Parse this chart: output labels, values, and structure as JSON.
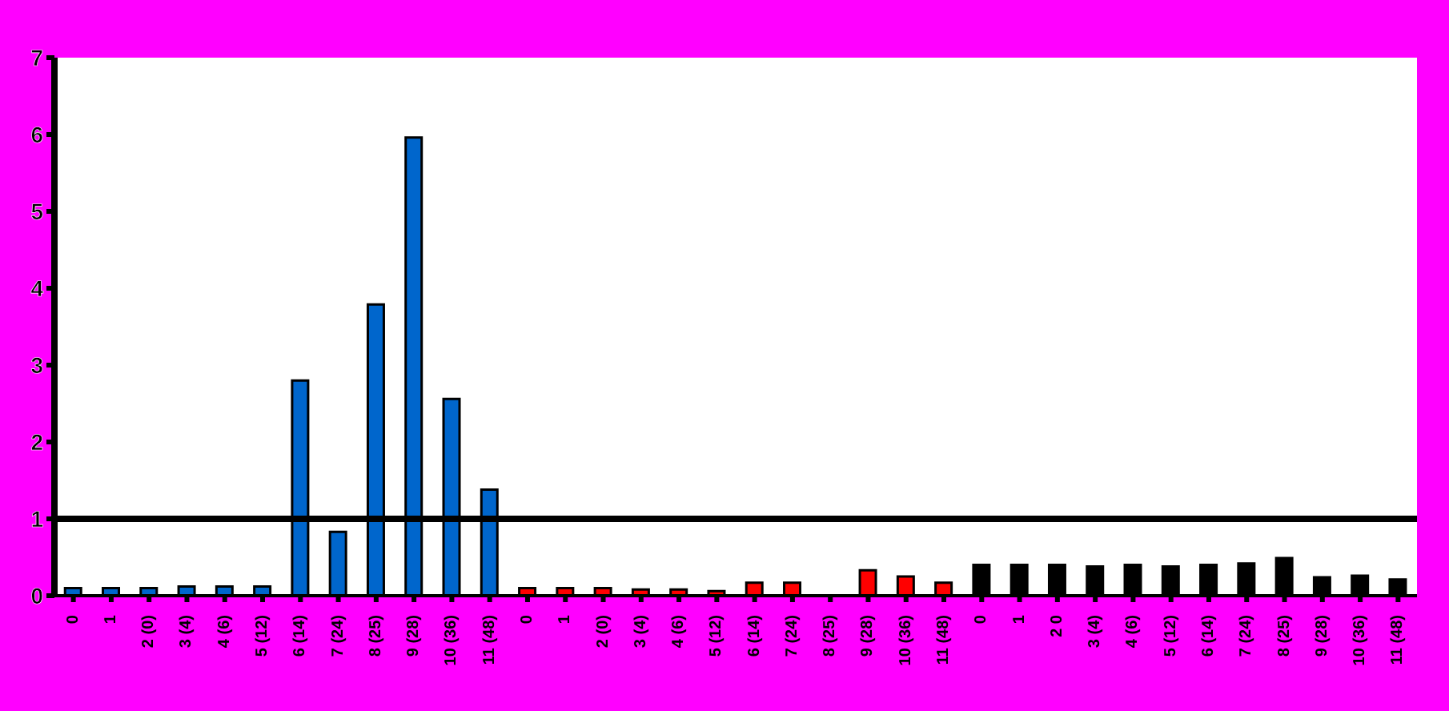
{
  "chart_data": {
    "type": "bar",
    "categories": [
      "0",
      "1",
      "2 (0)",
      "3 (4)",
      "4 (6)",
      "5 (12)",
      "6 (14)",
      "7 (24)",
      "8 (25)",
      "9 (28)",
      "10 (36)",
      "11 (48)",
      "0",
      "1",
      "2 (0)",
      "3 (4)",
      "4 (6)",
      "5 (12)",
      "6 (14)",
      "7 (24)",
      "8 (25)",
      "9 (28)",
      "10 (36)",
      "11 (48)",
      "0",
      "1",
      "2 0",
      "3 (4)",
      "4 (6)",
      "5 (12)",
      "6 (14)",
      "7 (24)",
      "8 (25)",
      "9 (28)",
      "10 (36)",
      "11 (48)"
    ],
    "values": [
      0.1,
      0.1,
      0.1,
      0.12,
      0.12,
      0.12,
      2.8,
      0.83,
      3.79,
      5.96,
      2.56,
      1.38,
      0.1,
      0.1,
      0.1,
      0.08,
      0.08,
      0.06,
      0.17,
      0.17,
      0,
      0.33,
      0.25,
      0.17,
      0.4,
      0.4,
      0.4,
      0.38,
      0.4,
      0.38,
      0.4,
      0.42,
      0.49,
      0.24,
      0.26,
      0.21
    ],
    "colors": [
      "#0066cc",
      "#0066cc",
      "#0066cc",
      "#0066cc",
      "#0066cc",
      "#0066cc",
      "#0066cc",
      "#0066cc",
      "#0066cc",
      "#0066cc",
      "#0066cc",
      "#0066cc",
      "#ff0000",
      "#ff0000",
      "#ff0000",
      "#ff0000",
      "#ff0000",
      "#ff0000",
      "#ff0000",
      "#ff0000",
      "#ff0000",
      "#ff0000",
      "#ff0000",
      "#ff0000",
      "#000000",
      "#000000",
      "#000000",
      "#000000",
      "#000000",
      "#000000",
      "#000000",
      "#000000",
      "#000000",
      "#000000",
      "#000000",
      "#000000"
    ],
    "ylim": [
      0,
      7
    ],
    "yticks": [
      0,
      1,
      2,
      3,
      4,
      5,
      6,
      7
    ],
    "ref_lines": [
      {
        "axis": "y",
        "value": 1,
        "color": "#000000"
      }
    ],
    "grid": false
  }
}
